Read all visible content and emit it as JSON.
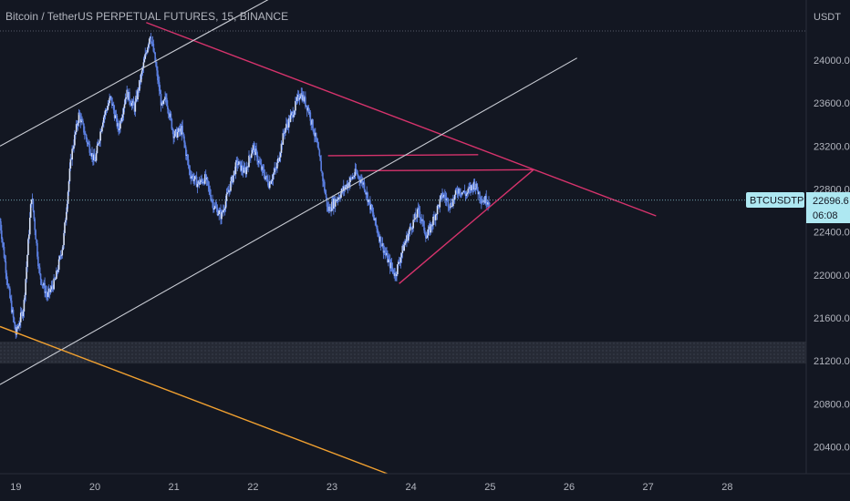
{
  "colors": {
    "background": "#131722",
    "axis_panel": "#131722",
    "axis_text": "#b2b5be",
    "candle": "#5b7fe0",
    "trendline_pink": "#d6336c",
    "channel_white": "#c9ccd4",
    "support_orange": "#f0a030",
    "zone_fill": "#2a2e39",
    "price_tag_bg": "#aee8f2",
    "price_tag_text": "#131722"
  },
  "header": {
    "title": "Bitcoin / TetherUS PERPETUAL FUTURES, 15, BINANCE",
    "currency": "USDT"
  },
  "price_tag": {
    "symbol": "BTCUSDTPERP",
    "price": "22696.6",
    "countdown": "06:08"
  },
  "chart_data": {
    "type": "line",
    "symbol": "BTCUSDTPERP",
    "title": "Bitcoin / TetherUS PERPETUAL FUTURES, 15, BINANCE",
    "ylabel": "USDT",
    "xlabel": "",
    "x_ticks": [
      "19",
      "20",
      "21",
      "22",
      "23",
      "24",
      "25",
      "26",
      "27",
      "28"
    ],
    "y_ticks": [
      20400,
      20800,
      21200,
      21600,
      22000,
      22400,
      22800,
      23200,
      23600,
      24000
    ],
    "xlim": [
      18.8,
      29.0
    ],
    "ylim": [
      20150,
      24560
    ],
    "grid": false,
    "last_price": 22696.6,
    "series": [
      {
        "values": [
          [
            18.8,
            22500
          ],
          [
            18.9,
            21900
          ],
          [
            19.0,
            21450
          ],
          [
            19.1,
            21700
          ],
          [
            19.2,
            22750
          ],
          [
            19.3,
            22000
          ],
          [
            19.4,
            21800
          ],
          [
            19.5,
            21950
          ],
          [
            19.6,
            22300
          ],
          [
            19.7,
            23100
          ],
          [
            19.8,
            23500
          ],
          [
            19.9,
            23250
          ],
          [
            20.0,
            23050
          ],
          [
            20.1,
            23450
          ],
          [
            20.2,
            23650
          ],
          [
            20.3,
            23350
          ],
          [
            20.4,
            23700
          ],
          [
            20.5,
            23550
          ],
          [
            20.6,
            23900
          ],
          [
            20.7,
            24250
          ],
          [
            20.75,
            24050
          ],
          [
            20.8,
            23800
          ],
          [
            20.85,
            23550
          ],
          [
            20.9,
            23650
          ],
          [
            21.0,
            23300
          ],
          [
            21.1,
            23350
          ],
          [
            21.2,
            22950
          ],
          [
            21.3,
            22850
          ],
          [
            21.4,
            22900
          ],
          [
            21.5,
            22650
          ],
          [
            21.6,
            22550
          ],
          [
            21.7,
            22800
          ],
          [
            21.8,
            23050
          ],
          [
            21.9,
            22950
          ],
          [
            22.0,
            23200
          ],
          [
            22.1,
            23000
          ],
          [
            22.2,
            22850
          ],
          [
            22.3,
            23000
          ],
          [
            22.4,
            23350
          ],
          [
            22.5,
            23500
          ],
          [
            22.6,
            23700
          ],
          [
            22.7,
            23550
          ],
          [
            22.8,
            23250
          ],
          [
            22.85,
            23050
          ],
          [
            22.95,
            22600
          ],
          [
            23.1,
            22750
          ],
          [
            23.2,
            22850
          ],
          [
            23.3,
            22950
          ],
          [
            23.4,
            22850
          ],
          [
            23.5,
            22600
          ],
          [
            23.6,
            22350
          ],
          [
            23.7,
            22150
          ],
          [
            23.8,
            22000
          ],
          [
            23.9,
            22250
          ],
          [
            24.0,
            22450
          ],
          [
            24.1,
            22600
          ],
          [
            24.2,
            22350
          ],
          [
            24.3,
            22550
          ],
          [
            24.4,
            22750
          ],
          [
            24.5,
            22650
          ],
          [
            24.6,
            22800
          ],
          [
            24.7,
            22750
          ],
          [
            24.8,
            22850
          ],
          [
            24.9,
            22700
          ],
          [
            25.0,
            22697
          ]
        ]
      }
    ],
    "annotations": [
      {
        "type": "trendline",
        "color": "pink",
        "points": [
          [
            20.65,
            24350
          ],
          [
            27.1,
            22550
          ]
        ]
      },
      {
        "type": "trendline",
        "color": "pink",
        "points": [
          [
            22.95,
            23110
          ],
          [
            24.85,
            23120
          ]
        ]
      },
      {
        "type": "trendline",
        "color": "pink",
        "points": [
          [
            23.35,
            22970
          ],
          [
            25.55,
            22980
          ]
        ]
      },
      {
        "type": "trendline",
        "color": "pink",
        "points": [
          [
            23.85,
            21920
          ],
          [
            25.55,
            22980
          ]
        ]
      },
      {
        "type": "trendline",
        "color": "white",
        "points": [
          [
            18.8,
            20980
          ],
          [
            26.1,
            24020
          ]
        ]
      },
      {
        "type": "trendline",
        "color": "white",
        "points": [
          [
            18.8,
            23200
          ],
          [
            24.15,
            25350
          ]
        ]
      },
      {
        "type": "trendline",
        "color": "orange",
        "points": [
          [
            18.8,
            21520
          ],
          [
            23.7,
            20150
          ]
        ]
      },
      {
        "type": "zone",
        "color": "gray",
        "range": [
          21175,
          21380
        ]
      }
    ]
  }
}
